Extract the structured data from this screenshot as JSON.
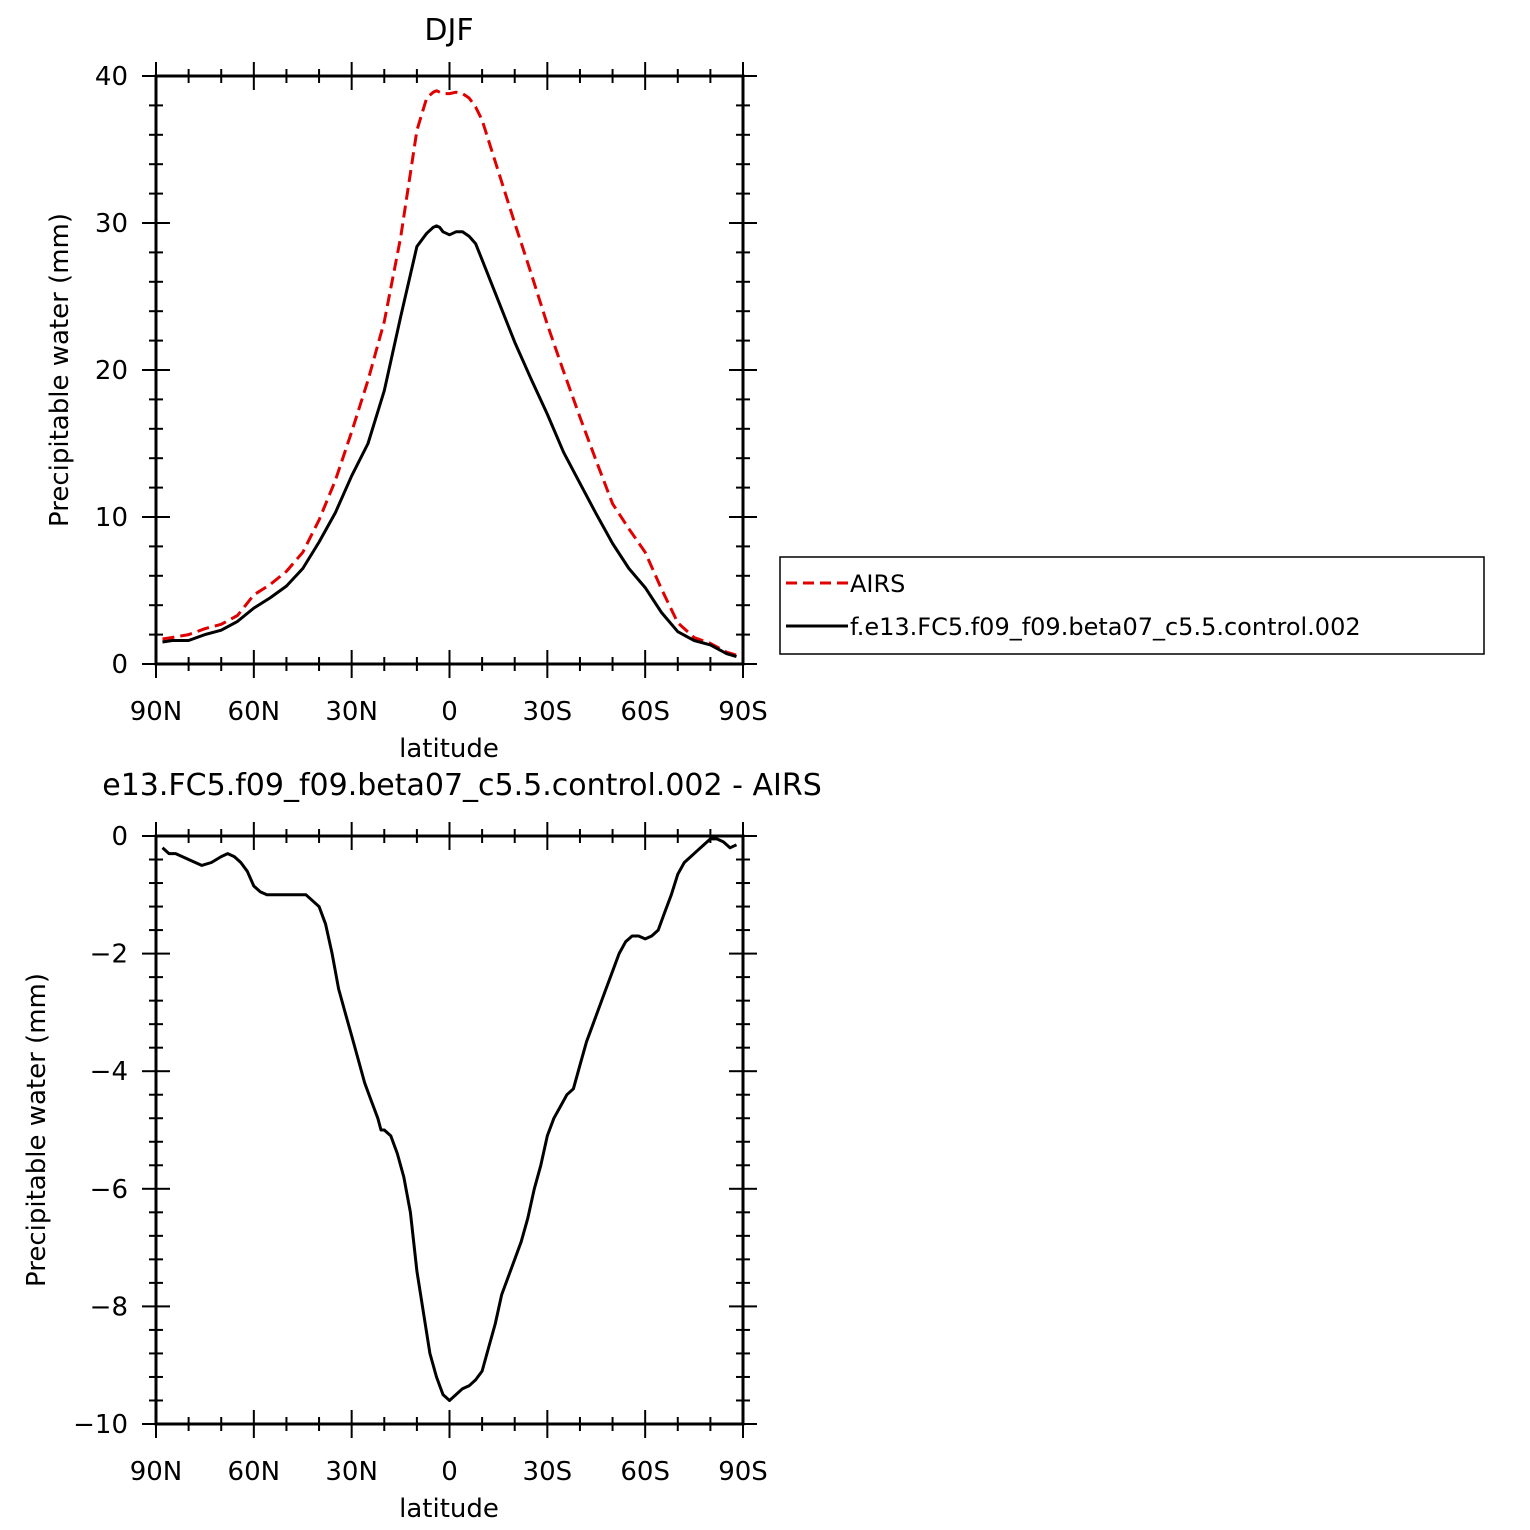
{
  "chart_data": [
    {
      "type": "line",
      "title": "DJF",
      "xlabel": "latitude",
      "ylabel": "Precipitable water (mm)",
      "xlim": [
        -90,
        90
      ],
      "ylim": [
        0,
        40
      ],
      "x_ticks": [
        -90,
        -60,
        -30,
        0,
        30,
        60,
        90
      ],
      "x_tick_labels": [
        "90N",
        "60N",
        "30N",
        "0",
        "30S",
        "60S",
        "90S"
      ],
      "y_ticks": [
        0,
        10,
        20,
        30,
        40
      ],
      "y_tick_labels": [
        "0",
        "10",
        "20",
        "30",
        "40"
      ],
      "legend_position": "right",
      "series": [
        {
          "name": "AIRS",
          "color": "#e00000",
          "dash": "dashed",
          "x": [
            -88,
            -85,
            -80,
            -75,
            -70,
            -65,
            -60,
            -55,
            -50,
            -45,
            -40,
            -35,
            -30,
            -25,
            -20,
            -15,
            -10,
            -7,
            -5,
            -4,
            -3,
            -2,
            0,
            2,
            4,
            6,
            8,
            10,
            15,
            20,
            25,
            30,
            35,
            40,
            45,
            50,
            55,
            60,
            65,
            70,
            75,
            80,
            85,
            88
          ],
          "y": [
            1.7,
            1.8,
            2.0,
            2.4,
            2.7,
            3.3,
            4.7,
            5.4,
            6.3,
            7.6,
            9.8,
            12.5,
            15.8,
            19.3,
            23.3,
            29.0,
            36.3,
            38.5,
            38.9,
            39.0,
            38.9,
            38.8,
            38.8,
            38.9,
            38.8,
            38.5,
            37.9,
            37.0,
            33.5,
            30.0,
            26.6,
            23.1,
            19.9,
            16.8,
            13.8,
            10.9,
            9.2,
            7.6,
            5.1,
            2.8,
            1.8,
            1.4,
            0.8,
            0.6
          ]
        },
        {
          "name": "f.e13.FC5.f09_f09.beta07_c5.5.control.002",
          "color": "#000000",
          "dash": "solid",
          "x": [
            -88,
            -85,
            -80,
            -75,
            -70,
            -65,
            -60,
            -55,
            -50,
            -45,
            -40,
            -35,
            -30,
            -25,
            -20,
            -15,
            -10,
            -7,
            -5,
            -4,
            -3,
            -2,
            0,
            2,
            4,
            6,
            8,
            10,
            15,
            20,
            25,
            30,
            35,
            40,
            45,
            50,
            55,
            60,
            65,
            70,
            75,
            80,
            85,
            88
          ],
          "y": [
            1.5,
            1.6,
            1.6,
            2.0,
            2.3,
            2.9,
            3.8,
            4.5,
            5.3,
            6.5,
            8.3,
            10.3,
            12.8,
            15.0,
            18.6,
            23.6,
            28.4,
            29.3,
            29.7,
            29.8,
            29.7,
            29.4,
            29.2,
            29.4,
            29.4,
            29.1,
            28.6,
            27.5,
            24.7,
            21.9,
            19.4,
            17.0,
            14.4,
            12.3,
            10.2,
            8.2,
            6.5,
            5.2,
            3.5,
            2.2,
            1.6,
            1.3,
            0.7,
            0.5
          ]
        }
      ]
    },
    {
      "type": "line",
      "title": "e13.FC5.f09_f09.beta07_c5.5.control.002 - AIRS",
      "xlabel": "latitude",
      "ylabel": "Precipitable water (mm)",
      "xlim": [
        -90,
        90
      ],
      "ylim": [
        -10,
        0
      ],
      "x_ticks": [
        -90,
        -60,
        -30,
        0,
        30,
        60,
        90
      ],
      "x_tick_labels": [
        "90N",
        "60N",
        "30N",
        "0",
        "30S",
        "60S",
        "90S"
      ],
      "y_ticks": [
        -10,
        -8,
        -6,
        -4,
        -2,
        0
      ],
      "y_tick_labels": [
        "−10",
        "−8",
        "−6",
        "−4",
        "−2",
        "0"
      ],
      "series": [
        {
          "color": "#000000",
          "dash": "solid",
          "x": [
            -88,
            -86,
            -84,
            -80,
            -76,
            -73,
            -70,
            -68,
            -66,
            -64,
            -62,
            -60,
            -58,
            -56,
            -54,
            -50,
            -46,
            -44,
            -42,
            -40,
            -38,
            -36,
            -34,
            -32,
            -30,
            -28,
            -26,
            -24,
            -22,
            -21,
            -20,
            -18,
            -16,
            -14,
            -12,
            -10,
            -8,
            -6,
            -4,
            -2,
            0,
            2,
            4,
            6,
            8,
            10,
            12,
            14,
            16,
            18,
            20,
            22,
            24,
            26,
            28,
            30,
            32,
            34,
            36,
            38,
            40,
            42,
            44,
            46,
            48,
            50,
            52,
            54,
            56,
            58,
            60,
            62,
            64,
            66,
            68,
            70,
            72,
            74,
            76,
            78,
            80,
            82,
            84,
            86,
            88
          ],
          "y": [
            -0.2,
            -0.3,
            -0.3,
            -0.4,
            -0.5,
            -0.45,
            -0.35,
            -0.3,
            -0.35,
            -0.45,
            -0.6,
            -0.85,
            -0.95,
            -1.0,
            -1.0,
            -1.0,
            -1.0,
            -1.0,
            -1.1,
            -1.2,
            -1.5,
            -2.0,
            -2.6,
            -3.0,
            -3.4,
            -3.8,
            -4.2,
            -4.5,
            -4.8,
            -5.0,
            -5.0,
            -5.1,
            -5.4,
            -5.8,
            -6.4,
            -7.4,
            -8.1,
            -8.8,
            -9.2,
            -9.5,
            -9.6,
            -9.5,
            -9.4,
            -9.35,
            -9.25,
            -9.1,
            -8.7,
            -8.3,
            -7.8,
            -7.5,
            -7.2,
            -6.9,
            -6.5,
            -6.0,
            -5.6,
            -5.1,
            -4.8,
            -4.6,
            -4.4,
            -4.3,
            -3.9,
            -3.5,
            -3.2,
            -2.9,
            -2.6,
            -2.3,
            -2.0,
            -1.8,
            -1.7,
            -1.7,
            -1.75,
            -1.7,
            -1.6,
            -1.3,
            -1.0,
            -0.65,
            -0.45,
            -0.35,
            -0.25,
            -0.15,
            -0.05,
            -0.05,
            -0.1,
            -0.2,
            -0.15
          ]
        }
      ]
    }
  ]
}
